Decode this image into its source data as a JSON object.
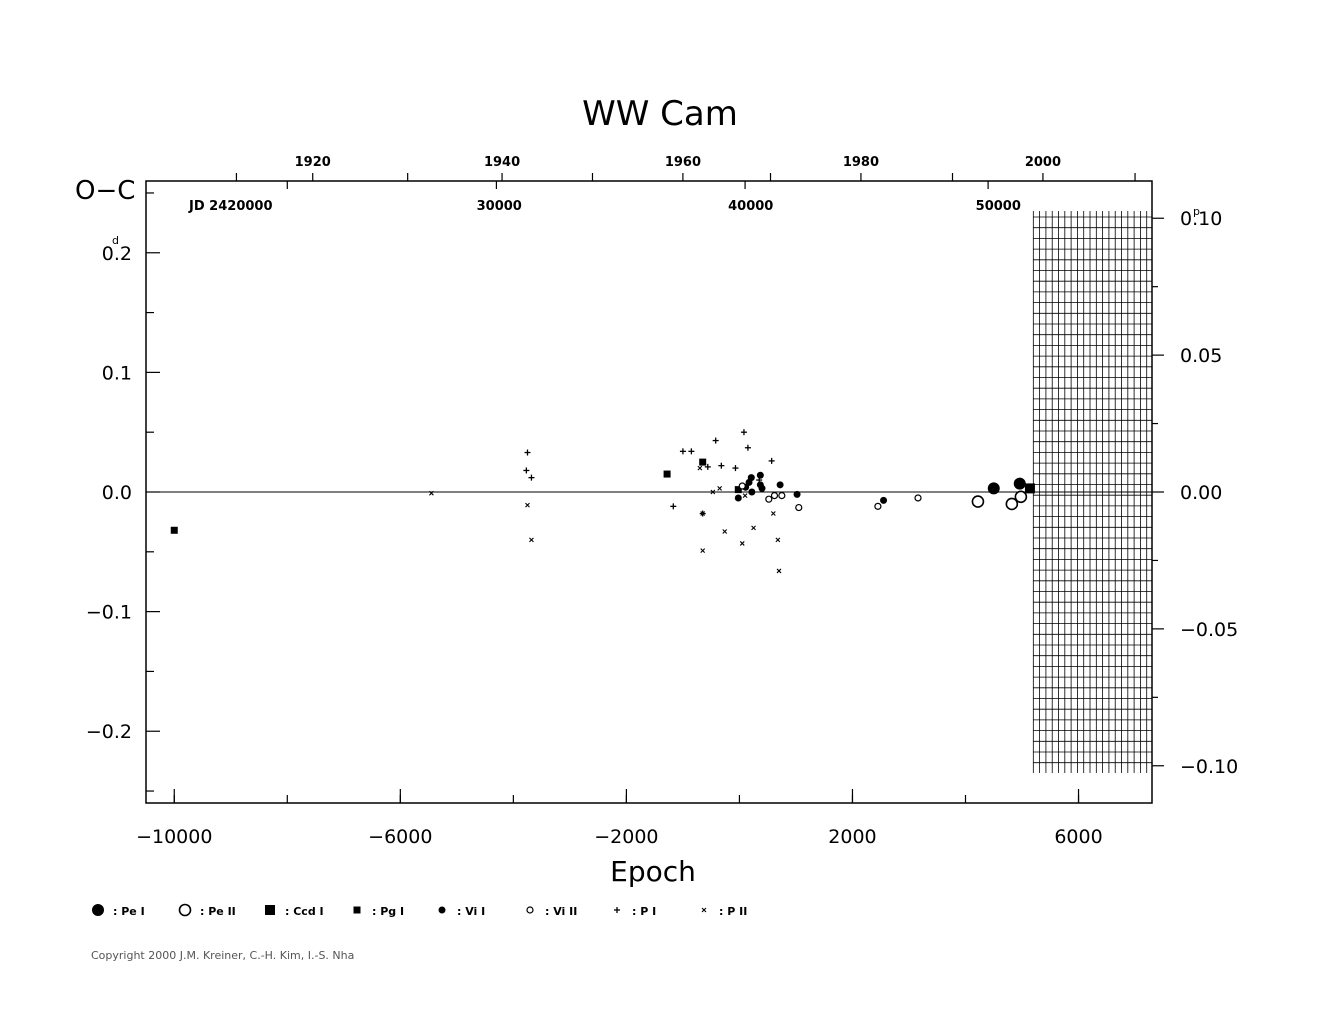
{
  "chart_data": {
    "type": "scatter",
    "title": "WW  Cam",
    "xlabel": "Epoch",
    "ylabel": "O−C",
    "ylabel_unit_left": "d",
    "ylabel_unit_right": "p",
    "xlim": [
      -10500,
      7300
    ],
    "ylim": [
      -0.26,
      0.26
    ],
    "y2lim": [
      -0.1136,
      0.1136
    ],
    "x_ticks": [
      {
        "value": -10000,
        "label": "−10000"
      },
      {
        "value": -6000,
        "label": "−6000"
      },
      {
        "value": -2000,
        "label": "−2000"
      },
      {
        "value": 2000,
        "label": "2000"
      },
      {
        "value": 6000,
        "label": "6000"
      }
    ],
    "y_ticks": [
      {
        "value": 0.2,
        "label": "0.2"
      },
      {
        "value": 0.1,
        "label": "0.1"
      },
      {
        "value": 0.0,
        "label": "0.0"
      },
      {
        "value": -0.1,
        "label": "−0.1"
      },
      {
        "value": -0.2,
        "label": "−0.2"
      }
    ],
    "y2_ticks": [
      {
        "value": 0.1,
        "label": "0.10"
      },
      {
        "value": 0.05,
        "label": "0.05"
      },
      {
        "value": 0.0,
        "label": "0.00"
      },
      {
        "value": -0.05,
        "label": "−0.05"
      },
      {
        "value": -0.1,
        "label": "−0.10"
      }
    ],
    "top_year_labels": [
      {
        "label": "1920",
        "epoch": -7550
      },
      {
        "label": "1940",
        "epoch": -4200
      },
      {
        "label": "1960",
        "epoch": -1000
      },
      {
        "label": "1980",
        "epoch": 2150
      },
      {
        "label": "2000",
        "epoch": 5370
      }
    ],
    "top_jd_labels": [
      {
        "label": "JD  2420000",
        "epoch": -9000
      },
      {
        "label": "30000",
        "epoch": -4250
      },
      {
        "label": "40000",
        "epoch": 200
      },
      {
        "label": "50000",
        "epoch": 4580
      }
    ],
    "series": [
      {
        "name": "Pe I",
        "marker": "filled-circle-large",
        "points": [
          [
            4500,
            0.003
          ],
          [
            4960,
            0.007
          ]
        ]
      },
      {
        "name": "Pe II",
        "marker": "open-circle-large",
        "points": [
          [
            4220,
            -0.008
          ],
          [
            4820,
            -0.01
          ],
          [
            4980,
            -0.004
          ]
        ]
      },
      {
        "name": "Ccd I",
        "marker": "filled-square-large",
        "points": [
          [
            5140,
            0.003
          ]
        ]
      },
      {
        "name": "Pg I",
        "marker": "filled-square-small",
        "points": [
          [
            -10000,
            -0.032
          ],
          [
            -1280,
            0.015
          ],
          [
            -650,
            0.025
          ],
          [
            -20,
            0.002
          ]
        ]
      },
      {
        "name": "Vis I",
        "marker": "filled-circle-small",
        "points": [
          [
            -20,
            -0.005
          ],
          [
            110,
            0.004
          ],
          [
            170,
            0.008
          ],
          [
            210,
            0.012
          ],
          [
            220,
            0.0
          ],
          [
            370,
            0.014
          ],
          [
            370,
            0.006
          ],
          [
            400,
            0.003
          ],
          [
            720,
            0.006
          ],
          [
            1020,
            -0.002
          ],
          [
            2550,
            -0.007
          ]
        ]
      },
      {
        "name": "Vis II",
        "marker": "open-circle-small",
        "points": [
          [
            50,
            0.005
          ],
          [
            520,
            -0.006
          ],
          [
            620,
            -0.003
          ],
          [
            750,
            -0.003
          ],
          [
            1050,
            -0.013
          ],
          [
            2450,
            -0.012
          ],
          [
            3160,
            -0.005
          ]
        ]
      },
      {
        "name": "P I",
        "marker": "plus",
        "points": [
          [
            -3750,
            0.033
          ],
          [
            -3770,
            0.018
          ],
          [
            -3680,
            0.012
          ],
          [
            -1170,
            -0.012
          ],
          [
            -1000,
            0.034
          ],
          [
            -850,
            0.034
          ],
          [
            -650,
            -0.018
          ],
          [
            -560,
            0.021
          ],
          [
            -420,
            0.043
          ],
          [
            -320,
            0.022
          ],
          [
            80,
            0.05
          ],
          [
            150,
            0.037
          ],
          [
            -70,
            0.02
          ],
          [
            570,
            0.026
          ],
          [
            350,
            0.01
          ]
        ]
      },
      {
        "name": "P II",
        "marker": "cross",
        "points": [
          [
            -5450,
            -0.001
          ],
          [
            -3750,
            -0.011
          ],
          [
            -3680,
            -0.04
          ],
          [
            -650,
            -0.049
          ],
          [
            -700,
            0.02
          ],
          [
            -650,
            -0.018
          ],
          [
            -470,
            0.0
          ],
          [
            -350,
            0.003
          ],
          [
            -260,
            -0.033
          ],
          [
            50,
            -0.043
          ],
          [
            100,
            -0.003
          ],
          [
            250,
            -0.03
          ],
          [
            600,
            -0.018
          ],
          [
            700,
            -0.066
          ],
          [
            680,
            -0.04
          ]
        ]
      }
    ],
    "legend": [
      {
        "symbol": "filled-circle-large",
        "label": ": Pe  I"
      },
      {
        "symbol": "open-circle-large",
        "label": ": Pe  II"
      },
      {
        "symbol": "filled-square-large",
        "label": ": Ccd  I"
      },
      {
        "symbol": "filled-square-small",
        "label": ": Pg  I"
      },
      {
        "symbol": "filled-circle-small",
        "label": ": Vi  I"
      },
      {
        "symbol": "open-circle-small",
        "label": ": Vi  II"
      },
      {
        "symbol": "plus",
        "label": ": P  I"
      },
      {
        "symbol": "cross",
        "label": ": P  II"
      }
    ],
    "legend_placement": "bottom",
    "hatched_region": {
      "epoch_from": 5200,
      "epoch_to": 7300
    }
  },
  "copyright": "Copyright 2000 J.M. Kreiner, C.-H. Kim, I.-S. Nha"
}
